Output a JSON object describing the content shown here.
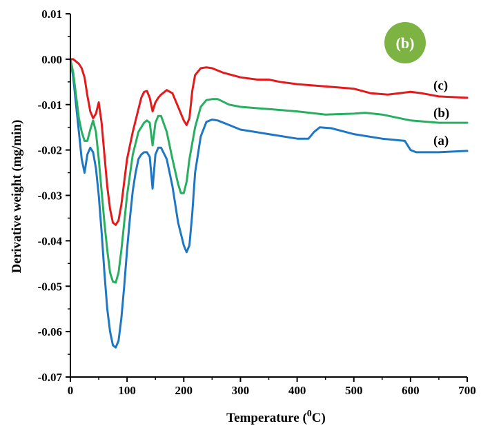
{
  "chart_data": {
    "type": "line",
    "title": "",
    "xlabel": "Temperature (",
    "xlabel_sup": "0",
    "xlabel_unit": "C)",
    "ylabel": "Derivative weight (mg/min)",
    "xlim": [
      0,
      700
    ],
    "ylim": [
      -0.07,
      0.01
    ],
    "xticks": [
      "0",
      "100",
      "200",
      "300",
      "400",
      "500",
      "600",
      "700"
    ],
    "yticks": [
      "0.01",
      "0.00",
      "-0.01",
      "-0.02",
      "-0.03",
      "-0.04",
      "-0.05",
      "-0.06",
      "-0.07"
    ],
    "grid": false,
    "badge": {
      "text": "(b)",
      "color": "#7cb342"
    },
    "series": [
      {
        "name": "(a)",
        "color": "#1f77c4",
        "x": [
          0,
          5,
          10,
          15,
          20,
          25,
          30,
          35,
          40,
          45,
          50,
          55,
          60,
          65,
          70,
          75,
          80,
          85,
          90,
          95,
          100,
          105,
          110,
          115,
          120,
          125,
          130,
          135,
          140,
          145,
          150,
          155,
          160,
          170,
          180,
          190,
          200,
          205,
          210,
          215,
          220,
          230,
          240,
          250,
          260,
          280,
          300,
          350,
          400,
          420,
          430,
          440,
          460,
          500,
          550,
          590,
          600,
          610,
          650,
          700
        ],
        "y": [
          0.0,
          -0.004,
          -0.01,
          -0.016,
          -0.022,
          -0.025,
          -0.021,
          -0.0195,
          -0.0205,
          -0.024,
          -0.03,
          -0.038,
          -0.047,
          -0.055,
          -0.06,
          -0.063,
          -0.0635,
          -0.062,
          -0.057,
          -0.05,
          -0.042,
          -0.035,
          -0.029,
          -0.025,
          -0.022,
          -0.021,
          -0.0205,
          -0.0205,
          -0.0215,
          -0.0285,
          -0.021,
          -0.0195,
          -0.0195,
          -0.022,
          -0.028,
          -0.036,
          -0.041,
          -0.0425,
          -0.041,
          -0.034,
          -0.025,
          -0.017,
          -0.0138,
          -0.0133,
          -0.0135,
          -0.0145,
          -0.0155,
          -0.0165,
          -0.0175,
          -0.0175,
          -0.016,
          -0.015,
          -0.0152,
          -0.0165,
          -0.0175,
          -0.018,
          -0.02,
          -0.0205,
          -0.0205,
          -0.0202
        ]
      },
      {
        "name": "(b)",
        "color": "#27ae60",
        "x": [
          0,
          5,
          10,
          15,
          20,
          25,
          30,
          35,
          40,
          45,
          50,
          55,
          60,
          65,
          70,
          75,
          80,
          85,
          90,
          95,
          100,
          110,
          120,
          130,
          135,
          140,
          145,
          150,
          155,
          160,
          170,
          180,
          190,
          195,
          200,
          205,
          210,
          220,
          230,
          240,
          250,
          260,
          280,
          300,
          350,
          400,
          450,
          500,
          520,
          550,
          600,
          650,
          700
        ],
        "y": [
          0.0,
          -0.003,
          -0.008,
          -0.013,
          -0.016,
          -0.018,
          -0.018,
          -0.0155,
          -0.0135,
          -0.016,
          -0.022,
          -0.029,
          -0.036,
          -0.042,
          -0.047,
          -0.049,
          -0.0492,
          -0.047,
          -0.042,
          -0.036,
          -0.03,
          -0.021,
          -0.016,
          -0.014,
          -0.0135,
          -0.014,
          -0.019,
          -0.014,
          -0.0125,
          -0.0125,
          -0.016,
          -0.022,
          -0.0275,
          -0.0295,
          -0.0295,
          -0.027,
          -0.022,
          -0.015,
          -0.0105,
          -0.009,
          -0.0088,
          -0.0088,
          -0.01,
          -0.0105,
          -0.011,
          -0.0115,
          -0.0122,
          -0.012,
          -0.0118,
          -0.0122,
          -0.0135,
          -0.014,
          -0.014
        ]
      },
      {
        "name": "(c)",
        "color": "#e31a1c",
        "x": [
          0,
          5,
          10,
          15,
          20,
          25,
          30,
          35,
          40,
          45,
          50,
          55,
          60,
          65,
          70,
          75,
          80,
          85,
          90,
          95,
          100,
          110,
          120,
          125,
          130,
          135,
          140,
          145,
          150,
          155,
          160,
          170,
          180,
          190,
          200,
          205,
          210,
          215,
          220,
          230,
          240,
          250,
          270,
          300,
          330,
          350,
          370,
          400,
          450,
          500,
          530,
          560,
          600,
          620,
          650,
          700
        ],
        "y": [
          0.0,
          0.0,
          -0.0005,
          -0.001,
          -0.002,
          -0.004,
          -0.008,
          -0.0115,
          -0.013,
          -0.012,
          -0.0095,
          -0.014,
          -0.021,
          -0.028,
          -0.033,
          -0.036,
          -0.0365,
          -0.0355,
          -0.032,
          -0.027,
          -0.022,
          -0.016,
          -0.011,
          -0.0085,
          -0.0072,
          -0.007,
          -0.0085,
          -0.0115,
          -0.0095,
          -0.0085,
          -0.0078,
          -0.0068,
          -0.0075,
          -0.0105,
          -0.0135,
          -0.0145,
          -0.013,
          -0.007,
          -0.0035,
          -0.002,
          -0.0018,
          -0.002,
          -0.003,
          -0.004,
          -0.0045,
          -0.0045,
          -0.005,
          -0.0055,
          -0.006,
          -0.0065,
          -0.0075,
          -0.0078,
          -0.0072,
          -0.0075,
          -0.0082,
          -0.0085
        ]
      }
    ]
  }
}
